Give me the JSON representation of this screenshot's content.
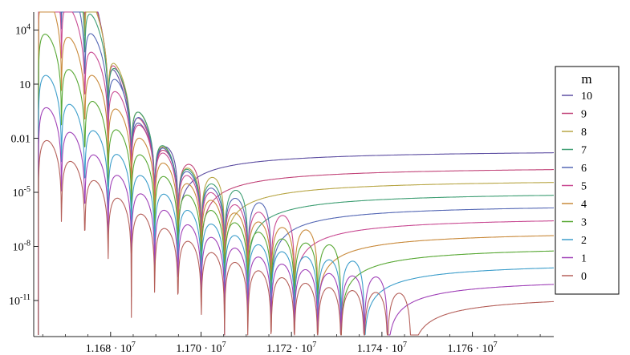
{
  "chart_data": {
    "type": "line",
    "title": "",
    "xlabel": "",
    "ylabel": "",
    "y_scale": "log",
    "grid": false,
    "xlim": [
      11663000,
      11778000
    ],
    "ylim": [
      1e-13,
      100000.0
    ],
    "x_ticks": [
      {
        "value": 11680000,
        "mantissa": "1.168",
        "exp": "7"
      },
      {
        "value": 11700000,
        "mantissa": "1.170",
        "exp": "7"
      },
      {
        "value": 11720000,
        "mantissa": "1.172",
        "exp": "7"
      },
      {
        "value": 11740000,
        "mantissa": "1.174",
        "exp": "7"
      },
      {
        "value": 11760000,
        "mantissa": "1.176",
        "exp": "7"
      }
    ],
    "y_ticks": [
      {
        "value": 10000,
        "base": "10",
        "exp": "4"
      },
      {
        "value": 10,
        "base": "10",
        "exp": ""
      },
      {
        "value": 0.01,
        "base": "0.01",
        "exp": ""
      },
      {
        "value": 1e-05,
        "base": "10",
        "exp": "-5"
      },
      {
        "value": 1e-08,
        "base": "10",
        "exp": "-8"
      },
      {
        "value": 1e-11,
        "base": "10",
        "exp": "-11"
      }
    ],
    "legend": {
      "title": "m",
      "placement": "right"
    },
    "x_start": 11664000,
    "zero_spacing": 5150,
    "series": [
      {
        "name": "10",
        "color": "#5e4fa2",
        "tail": 0.0025,
        "decay": 26,
        "zeros": 6
      },
      {
        "name": "9",
        "color": "#c2467a",
        "tail": 0.0003,
        "decay": 23,
        "zeros": 7
      },
      {
        "name": "8",
        "color": "#b8a646",
        "tail": 6e-05,
        "decay": 21,
        "zeros": 8
      },
      {
        "name": "7",
        "color": "#3e9e73",
        "tail": 1.2e-05,
        "decay": 19,
        "zeros": 9
      },
      {
        "name": "6",
        "color": "#5568b5",
        "tail": 2.5e-06,
        "decay": 17,
        "zeros": 10
      },
      {
        "name": "5",
        "color": "#c94b93",
        "tail": 5e-07,
        "decay": 15.5,
        "zeros": 11
      },
      {
        "name": "4",
        "color": "#c98a3b",
        "tail": 8e-08,
        "decay": 14,
        "zeros": 12
      },
      {
        "name": "3",
        "color": "#58a834",
        "tail": 1.2e-08,
        "decay": 12.5,
        "zeros": 13
      },
      {
        "name": "2",
        "color": "#3d9ecb",
        "tail": 1.5e-09,
        "decay": 11,
        "zeros": 14
      },
      {
        "name": "1",
        "color": "#a042b8",
        "tail": 2e-10,
        "decay": 10,
        "zeros": 15
      },
      {
        "name": "0",
        "color": "#b5605a",
        "tail": 2.5e-11,
        "decay": 9,
        "zeros": 16
      }
    ]
  }
}
